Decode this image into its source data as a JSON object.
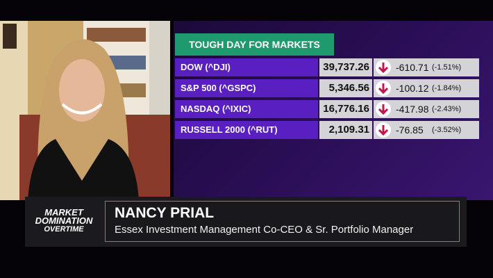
{
  "board": {
    "title": "TOUGH DAY FOR MARKETS",
    "rows": [
      {
        "name": "DOW (^DJI)",
        "price": "39,737.26",
        "change": "-610.71",
        "percent": "(-1.51%)"
      },
      {
        "name": "S&P 500 (^GSPC)",
        "price": "5,346.56",
        "change": "-100.12",
        "percent": "(-1.84%)"
      },
      {
        "name": "NASDAQ (^IXIC)",
        "price": "16,776.16",
        "change": "-417.98",
        "percent": "(-2.43%)"
      },
      {
        "name": "RUSSELL 2000 (^RUT)",
        "price": "2,109.31",
        "change": "-76.85",
        "percent": "(-3.52%)"
      }
    ]
  },
  "lower_third": {
    "show_logo": [
      "MARKET",
      "DOMINATION",
      "OVERTIME"
    ],
    "guest_name": "NANCY PRIAL",
    "guest_title": "Essex Investment Management Co-CEO & Sr. Portfolio Manager"
  }
}
